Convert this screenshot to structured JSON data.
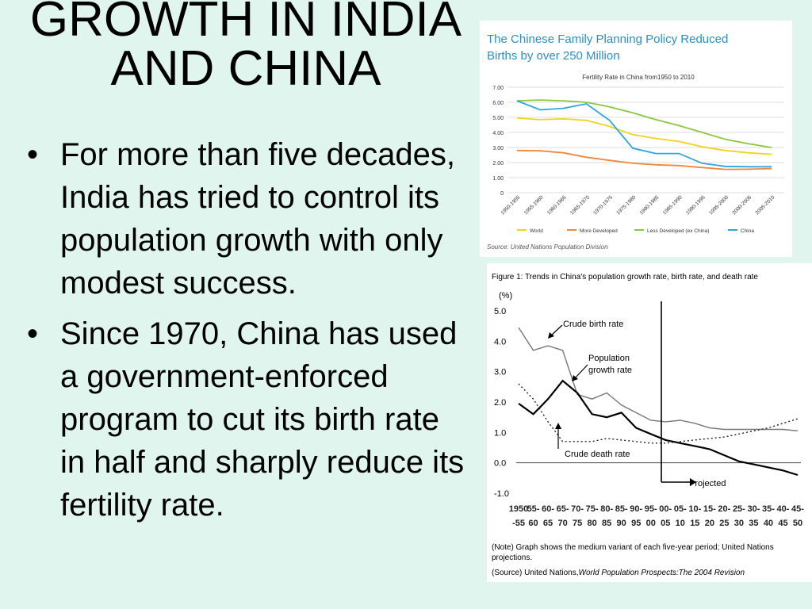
{
  "slide": {
    "title_lines": [
      "GROWTH IN INDIA",
      "AND CHINA"
    ],
    "bullets": [
      "For more than five decades, India has tried to control its population growth with only modest success.",
      "Since 1970, China has used a government-enforced program to cut its birth rate in half and sharply reduce its fertility rate."
    ]
  },
  "chart_data": [
    {
      "type": "line",
      "title": "The Chinese Family Planning Policy Reduced Births by over 250 Million",
      "subtitle": "Fertility Rate in China from1950 to 2010",
      "source": "Source: United Nations Population Division",
      "categories": [
        "1950-1955",
        "1955-1960",
        "1960-1965",
        "1965-1970",
        "1970-1975",
        "1975-1980",
        "1980-1985",
        "1985-1990",
        "1990-1995",
        "1995-2000",
        "2000-2005",
        "2005-2010"
      ],
      "y_ticks": [
        "0",
        "1.00",
        "2.00",
        "3.00",
        "4.00",
        "5.00",
        "6.00",
        "7.00"
      ],
      "ylim": [
        0,
        7
      ],
      "grid": true,
      "legend_position": "bottom",
      "series": [
        {
          "name": "World",
          "color": "#f2d21b",
          "values": [
            4.95,
            4.85,
            4.9,
            4.8,
            4.4,
            3.85,
            3.6,
            3.4,
            3.05,
            2.8,
            2.65,
            2.55
          ]
        },
        {
          "name": "More Developed",
          "color": "#f0883a",
          "values": [
            2.8,
            2.78,
            2.65,
            2.35,
            2.15,
            1.95,
            1.85,
            1.8,
            1.67,
            1.55,
            1.56,
            1.6
          ]
        },
        {
          "name": "Less Developed (ex China)",
          "color": "#8cc63f",
          "values": [
            6.1,
            6.15,
            6.1,
            6.0,
            5.7,
            5.3,
            4.85,
            4.45,
            4.0,
            3.55,
            3.25,
            3.0
          ]
        },
        {
          "name": "China",
          "color": "#2aa7df",
          "values": [
            6.1,
            5.5,
            5.6,
            5.9,
            4.8,
            2.95,
            2.6,
            2.6,
            1.95,
            1.75,
            1.72,
            1.72
          ]
        }
      ]
    },
    {
      "type": "line",
      "title": "Figure 1: Trends in China's population growth rate, birth rate, and death rate",
      "ylabel": "(%)",
      "y_ticks": [
        "5.0",
        "4.0",
        "3.0",
        "2.0",
        "1.0",
        "0.0",
        "-1.0"
      ],
      "ylim": [
        -1,
        5
      ],
      "x_labels_top": [
        "1950",
        "55-",
        "60-",
        "65-",
        "70-",
        "75-",
        "80-",
        "85-",
        "90-",
        "95-",
        "00-",
        "05-",
        "10-",
        "15-",
        "20-",
        "25-",
        "30-",
        "35-",
        "40-",
        "45-"
      ],
      "x_labels_bottom": [
        "-55",
        "60",
        "65",
        "70",
        "75",
        "80",
        "85",
        "90",
        "95",
        "00",
        "05",
        "10",
        "15",
        "20",
        "25",
        "30",
        "35",
        "40",
        "45",
        "50"
      ],
      "series": [
        {
          "name": "Crude birth rate",
          "values": [
            4.45,
            3.7,
            3.85,
            3.7,
            2.25,
            2.1,
            2.3,
            1.9,
            1.65,
            1.4,
            1.35,
            1.4,
            1.3,
            1.15,
            1.1,
            1.1,
            1.1,
            1.1,
            1.1,
            1.05
          ]
        },
        {
          "name": "Population growth rate",
          "values": [
            1.95,
            1.6,
            2.1,
            2.7,
            2.3,
            1.6,
            1.5,
            1.65,
            1.15,
            0.95,
            0.75,
            0.65,
            0.55,
            0.45,
            0.25,
            0.05,
            -0.05,
            -0.15,
            -0.25,
            -0.4
          ]
        },
        {
          "name": "Crude death rate",
          "values": [
            2.6,
            2.1,
            1.35,
            0.7,
            0.7,
            0.7,
            0.8,
            0.75,
            0.7,
            0.65,
            0.65,
            0.7,
            0.75,
            0.8,
            0.85,
            0.95,
            1.05,
            1.15,
            1.3,
            1.45
          ]
        }
      ],
      "projection_divider_index": 10,
      "annotations": {
        "projected": "Projected",
        "note": "(Note) Graph shows the medium variant of each five-year period; United Nations projections.",
        "source_prefix": "(Source) United Nations,",
        "source_italic": "World Population Prospects:The 2004 Revision"
      }
    }
  ]
}
